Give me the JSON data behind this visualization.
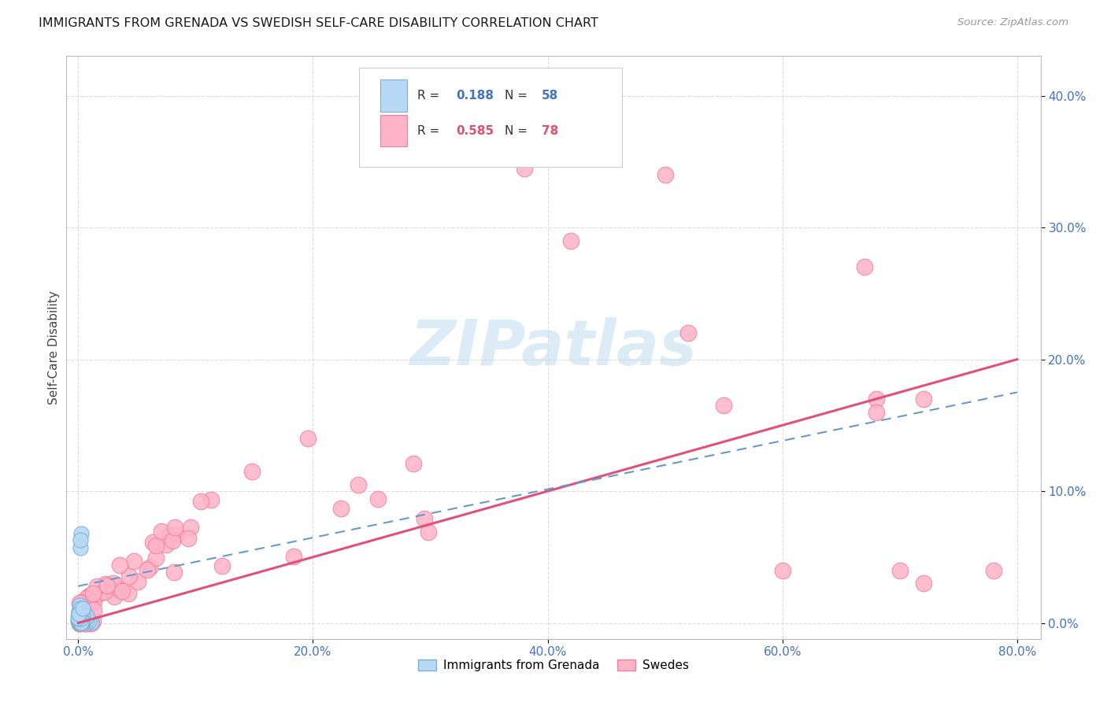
{
  "title": "IMMIGRANTS FROM GRENADA VS SWEDISH SELF-CARE DISABILITY CORRELATION CHART",
  "source": "Source: ZipAtlas.com",
  "ylabel": "Self-Care Disability",
  "blue_R": "0.188",
  "blue_N": "58",
  "pink_R": "0.585",
  "pink_N": "78",
  "blue_face": "#b8d9f5",
  "blue_edge": "#7aaed6",
  "pink_face": "#ffb3c8",
  "pink_edge": "#f08098",
  "blue_line_color": "#6699cc",
  "pink_line_color": "#e0507a",
  "text_blue": "#4472c4",
  "text_pink": "#e05070",
  "grid_color": "#d8d8d8",
  "watermark_color": "#cce5f5",
  "xlim": [
    -0.01,
    0.82
  ],
  "ylim": [
    -0.012,
    0.43
  ],
  "x_ticks": [
    0.0,
    0.2,
    0.4,
    0.6,
    0.8
  ],
  "y_ticks": [
    0.0,
    0.1,
    0.2,
    0.3,
    0.4
  ]
}
